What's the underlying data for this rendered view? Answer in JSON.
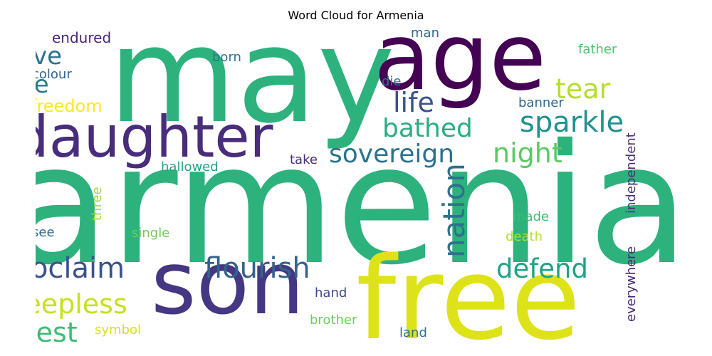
{
  "chart_data": {
    "type": "word-cloud",
    "title": "Word Cloud for Armenia",
    "colormap": "viridis",
    "words": [
      {
        "text": "armenia",
        "color": "#2db27d"
      },
      {
        "text": "may",
        "color": "#2db27d"
      },
      {
        "text": "age",
        "color": "#440154"
      },
      {
        "text": "free",
        "color": "#dde318"
      },
      {
        "text": "son",
        "color": "#453781"
      },
      {
        "text": "daughter",
        "color": "#472d7b"
      },
      {
        "text": "sovereign",
        "color": "#2c728e"
      },
      {
        "text": "proclaim",
        "color": "#3b528b"
      },
      {
        "text": "flourish",
        "color": "#33638d"
      },
      {
        "text": "nation",
        "color": "#2c728e"
      },
      {
        "text": "night",
        "color": "#5ec962"
      },
      {
        "text": "sparkle",
        "color": "#21918c"
      },
      {
        "text": "bathed",
        "color": "#28ae80"
      },
      {
        "text": "defend",
        "color": "#1fa187"
      },
      {
        "text": "sleepless",
        "color": "#c8e020"
      },
      {
        "text": "blest",
        "color": "#3dbc74"
      },
      {
        "text": "tear",
        "color": "#b5de2b"
      },
      {
        "text": "life",
        "color": "#3b528b"
      },
      {
        "text": "give",
        "color": "#2c728e"
      },
      {
        "text": "foe",
        "color": "#2a788e"
      },
      {
        "text": "freedom",
        "color": "#fde725"
      },
      {
        "text": "endured",
        "color": "#482576"
      },
      {
        "text": "colour",
        "color": "#33638d"
      },
      {
        "text": "born",
        "color": "#2c728e"
      },
      {
        "text": "man",
        "color": "#31688e"
      },
      {
        "text": "father",
        "color": "#4ac16d"
      },
      {
        "text": "die",
        "color": "#2c728e"
      },
      {
        "text": "banner",
        "color": "#31688e"
      },
      {
        "text": "hallowed",
        "color": "#20a386"
      },
      {
        "text": "take",
        "color": "#472c7a"
      },
      {
        "text": "independent",
        "color": "#472f7d"
      },
      {
        "text": "three",
        "color": "#a0da39"
      },
      {
        "text": "see",
        "color": "#31688e"
      },
      {
        "text": "single",
        "color": "#6ece58"
      },
      {
        "text": "made",
        "color": "#3dbc74"
      },
      {
        "text": "death",
        "color": "#b5de2b"
      },
      {
        "text": "everywhere",
        "color": "#482878"
      },
      {
        "text": "hand",
        "color": "#3e4989"
      },
      {
        "text": "brother",
        "color": "#6ece58"
      },
      {
        "text": "symbol",
        "color": "#d8e219"
      },
      {
        "text": "land",
        "color": "#2c728e"
      }
    ]
  }
}
